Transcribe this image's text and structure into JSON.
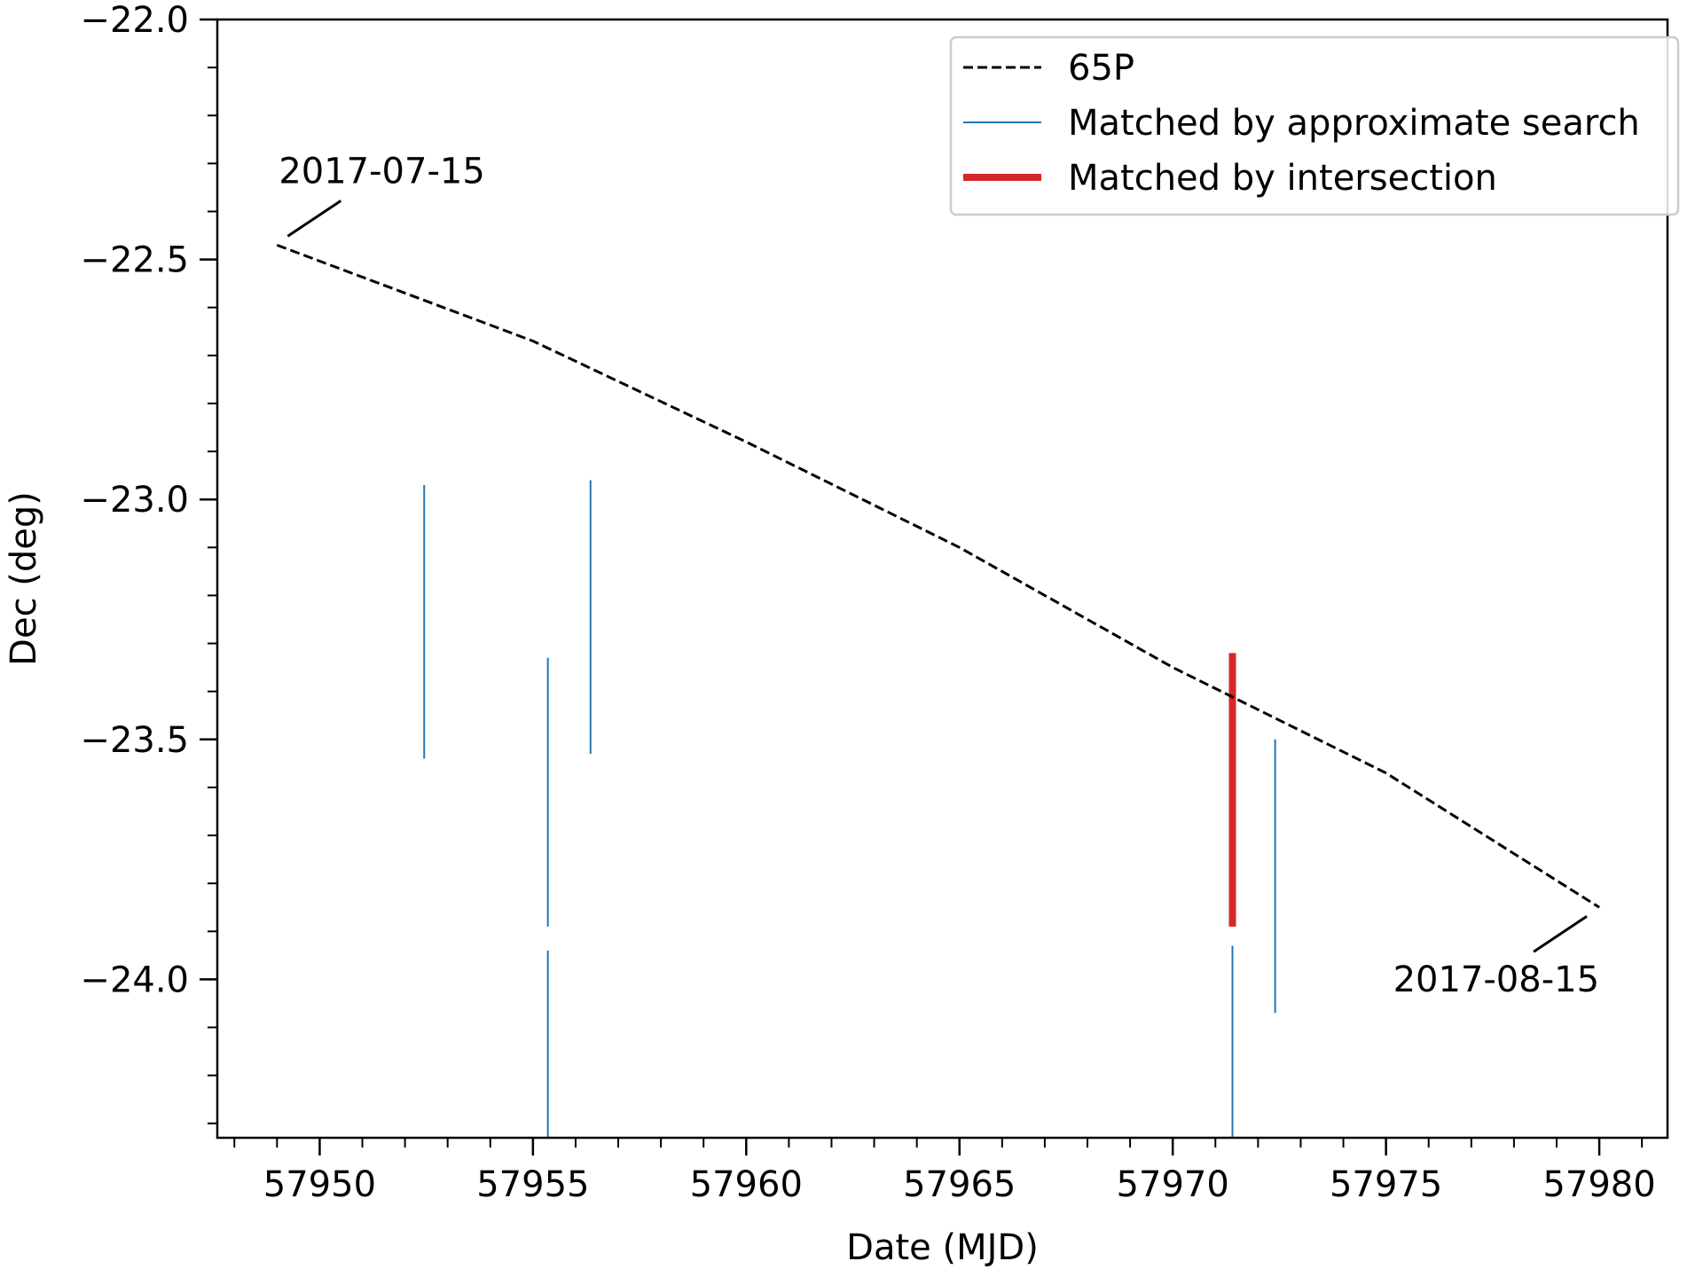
{
  "chart_data": {
    "type": "line",
    "xlabel": "Date (MJD)",
    "ylabel": "Dec (deg)",
    "xlim": [
      57947.6,
      57981.6
    ],
    "ylim": [
      -24.33,
      -22.0
    ],
    "x_ticks": [
      57950,
      57955,
      57960,
      57965,
      57970,
      57975,
      57980
    ],
    "x_tick_labels": [
      "57950",
      "57955",
      "57960",
      "57965",
      "57970",
      "57975",
      "57980"
    ],
    "y_ticks": [
      -22.0,
      -22.5,
      -23.0,
      -23.5,
      -24.0
    ],
    "y_tick_labels": [
      "−22.0",
      "−22.5",
      "−23.0",
      "−23.5",
      "−24.0"
    ],
    "grid": false,
    "legend_position": "top-right",
    "series": [
      {
        "name": "65P",
        "style": "dashed",
        "color": "#000000",
        "x": [
          57949,
          57955,
          57960,
          57965,
          57970,
          57975,
          57980
        ],
        "y": [
          -22.47,
          -22.67,
          -22.88,
          -23.1,
          -23.35,
          -23.57,
          -23.85
        ]
      }
    ],
    "approx_matches": {
      "name": "Matched by approximate search",
      "color": "#1f77b4",
      "segments": [
        {
          "x": 57952.45,
          "y0": -22.97,
          "y1": -23.54
        },
        {
          "x": 57955.35,
          "y0": -23.33,
          "y1": -23.89
        },
        {
          "x": 57955.35,
          "y0": -23.94,
          "y1": -24.33
        },
        {
          "x": 57956.35,
          "y0": -22.96,
          "y1": -23.53
        },
        {
          "x": 57971.4,
          "y0": -23.93,
          "y1": -24.33
        },
        {
          "x": 57972.4,
          "y0": -23.5,
          "y1": -24.07
        }
      ]
    },
    "intersection_matches": {
      "name": "Matched by intersection",
      "color": "#d62728",
      "segments": [
        {
          "x": 57971.4,
          "y0": -23.32,
          "y1": -23.89
        }
      ]
    },
    "annotations": [
      {
        "text": "2017-07-15",
        "x": 57949,
        "y": -22.47
      },
      {
        "text": "2017-08-15",
        "x": 57980,
        "y": -23.85
      }
    ]
  }
}
